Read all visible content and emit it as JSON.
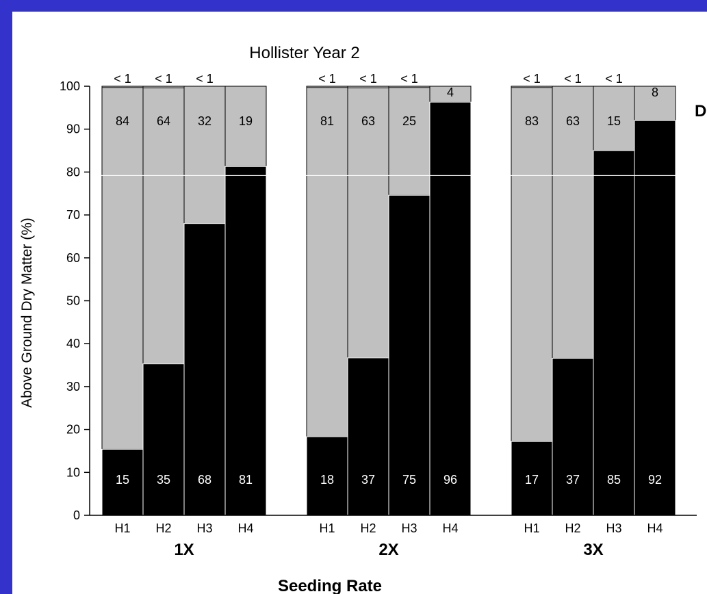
{
  "colors": {
    "frame": "#3333cc",
    "background": "#ffffff",
    "black_bar": "#000000",
    "gray_bar": "#c0c0c0",
    "gridline": "#ffffff"
  },
  "chart_data": {
    "type": "bar",
    "stacked": true,
    "title": "Hollister Year 2",
    "ylabel": "Above Ground Dry Matter (%)",
    "xlabel": "Seeding Rate",
    "ylim": [
      0,
      100
    ],
    "yticks": [
      0,
      10,
      20,
      30,
      40,
      50,
      60,
      70,
      80,
      90,
      100
    ],
    "cutoff_label": "D",
    "groups": [
      {
        "label": "1X",
        "categories": [
          "H1",
          "H2",
          "H3",
          "H4"
        ],
        "black": [
          15,
          35,
          68,
          81
        ],
        "gray": [
          84,
          64,
          32,
          19
        ],
        "top": [
          "< 1",
          "< 1",
          "< 1",
          ""
        ],
        "black_values": [
          15.4,
          35.3,
          68,
          81.3
        ],
        "gray_values": [
          84.3,
          64.3,
          32,
          18.7
        ],
        "top_values": [
          0.3,
          0.4,
          0,
          0
        ]
      },
      {
        "label": "2X",
        "categories": [
          "H1",
          "H2",
          "H3",
          "H4"
        ],
        "black": [
          18,
          37,
          75,
          96
        ],
        "gray": [
          81,
          63,
          25,
          4
        ],
        "top": [
          "< 1",
          "< 1",
          "< 1",
          ""
        ],
        "black_values": [
          18.3,
          36.7,
          74.6,
          96.3
        ],
        "gray_values": [
          81.4,
          62.9,
          25.1,
          3.7
        ],
        "top_values": [
          0.3,
          0.4,
          0.3,
          0
        ]
      },
      {
        "label": "3X",
        "categories": [
          "H1",
          "H2",
          "H3",
          "H4"
        ],
        "black": [
          17,
          37,
          85,
          92
        ],
        "gray": [
          83,
          63,
          15,
          8
        ],
        "top": [
          "< 1",
          "< 1",
          "< 1",
          ""
        ],
        "black_values": [
          17.2,
          36.6,
          85,
          92
        ],
        "gray_values": [
          82.5,
          63.4,
          15,
          8
        ],
        "top_values": [
          0.3,
          0,
          0,
          0
        ]
      }
    ],
    "gridline_at": 79.2,
    "grid": false,
    "legend": "none"
  }
}
